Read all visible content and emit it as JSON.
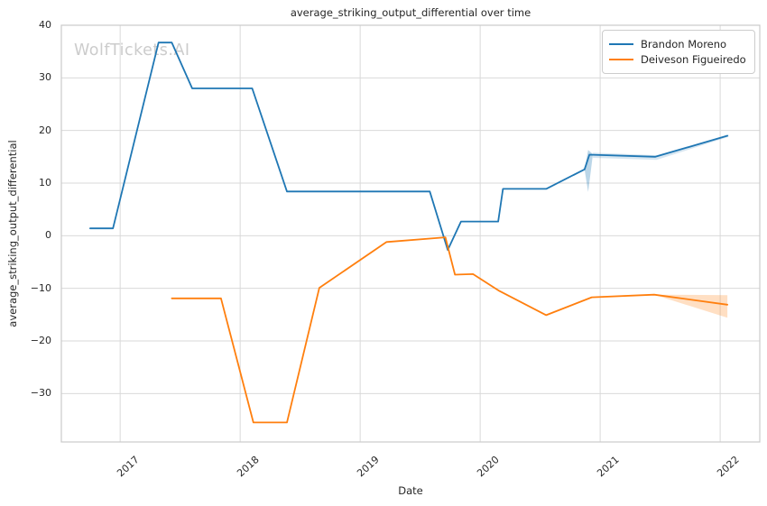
{
  "watermark": "WolfTickets.AI",
  "title": "average_striking_output_differential over time",
  "colors": {
    "moreno_blue": "#1f77b4",
    "figueiredo_orange": "#ff7f0e",
    "grid": "#d9d9d9",
    "spine": "#cacaca",
    "text": "#262626",
    "watermark": "#cccccc",
    "legend_border": "#cccccc"
  },
  "legend": {
    "items": [
      {
        "label": "Brandon Moreno",
        "color": "#1f77b4"
      },
      {
        "label": "Deiveson Figueiredo",
        "color": "#ff7f0e"
      }
    ]
  },
  "chart_data": {
    "type": "line",
    "title": "average_striking_output_differential over time",
    "xlabel": "Date",
    "ylabel": "average_striking_output_differential",
    "xlim": [
      2016.51,
      2022.33
    ],
    "ylim": [
      -39.2,
      40
    ],
    "x_ticks": [
      2017,
      2018,
      2019,
      2020,
      2021,
      2022
    ],
    "x_tick_labels": [
      "2017",
      "2018",
      "2019",
      "2020",
      "2021",
      "2022"
    ],
    "y_ticks": [
      40,
      30,
      20,
      10,
      0,
      -10,
      -20,
      -30
    ],
    "y_tick_labels": [
      "40",
      "30",
      "20",
      "10",
      "0",
      "−10",
      "−20",
      "−30"
    ],
    "grid": true,
    "legend_position": "upper right",
    "series": [
      {
        "name": "Brandon Moreno",
        "color": "#1f77b4",
        "x": [
          2016.75,
          2016.94,
          2017.32,
          2017.43,
          2017.6,
          2018.1,
          2018.39,
          2019.58,
          2019.73,
          2019.84,
          2020.15,
          2020.19,
          2020.55,
          2020.87,
          2020.91,
          2021.46,
          2022.06
        ],
        "y": [
          1.4,
          1.4,
          36.7,
          36.7,
          28.0,
          28.0,
          8.4,
          8.4,
          -2.7,
          2.7,
          2.7,
          8.9,
          8.9,
          12.6,
          15.4,
          15.0,
          19.0
        ]
      },
      {
        "name": "Deiveson Figueiredo",
        "color": "#ff7f0e",
        "x": [
          2017.43,
          2017.84,
          2018.11,
          2018.39,
          2018.66,
          2019.22,
          2019.71,
          2019.79,
          2019.94,
          2020.16,
          2020.55,
          2020.93,
          2021.45,
          2022.06
        ],
        "y": [
          -11.9,
          -11.9,
          -35.5,
          -35.5,
          -9.9,
          -1.2,
          -0.3,
          -7.4,
          -7.3,
          -10.5,
          -15.1,
          -11.7,
          -11.2,
          -13.1
        ]
      }
    ],
    "confidence_bands": [
      {
        "series": "Brandon Moreno",
        "color": "#1f77b4",
        "opacity": 0.3,
        "points": [
          [
            2020.87,
            12.6
          ],
          [
            2020.9,
            16.3
          ],
          [
            2020.94,
            15.5
          ],
          [
            2020.9,
            8.3
          ]
        ]
      },
      {
        "series": "Brandon Moreno",
        "color": "#1f77b4",
        "opacity": 0.18,
        "points": [
          [
            2020.94,
            15.8
          ],
          [
            2021.47,
            15.3
          ],
          [
            2022.07,
            19.2
          ],
          [
            2022.07,
            18.8
          ],
          [
            2021.47,
            14.4
          ],
          [
            2020.94,
            14.8
          ]
        ]
      },
      {
        "series": "Deiveson Figueiredo",
        "color": "#ff7f0e",
        "opacity": 0.25,
        "points": [
          [
            2021.45,
            -11.2
          ],
          [
            2022.06,
            -11.3
          ],
          [
            2022.06,
            -15.6
          ]
        ]
      }
    ]
  }
}
